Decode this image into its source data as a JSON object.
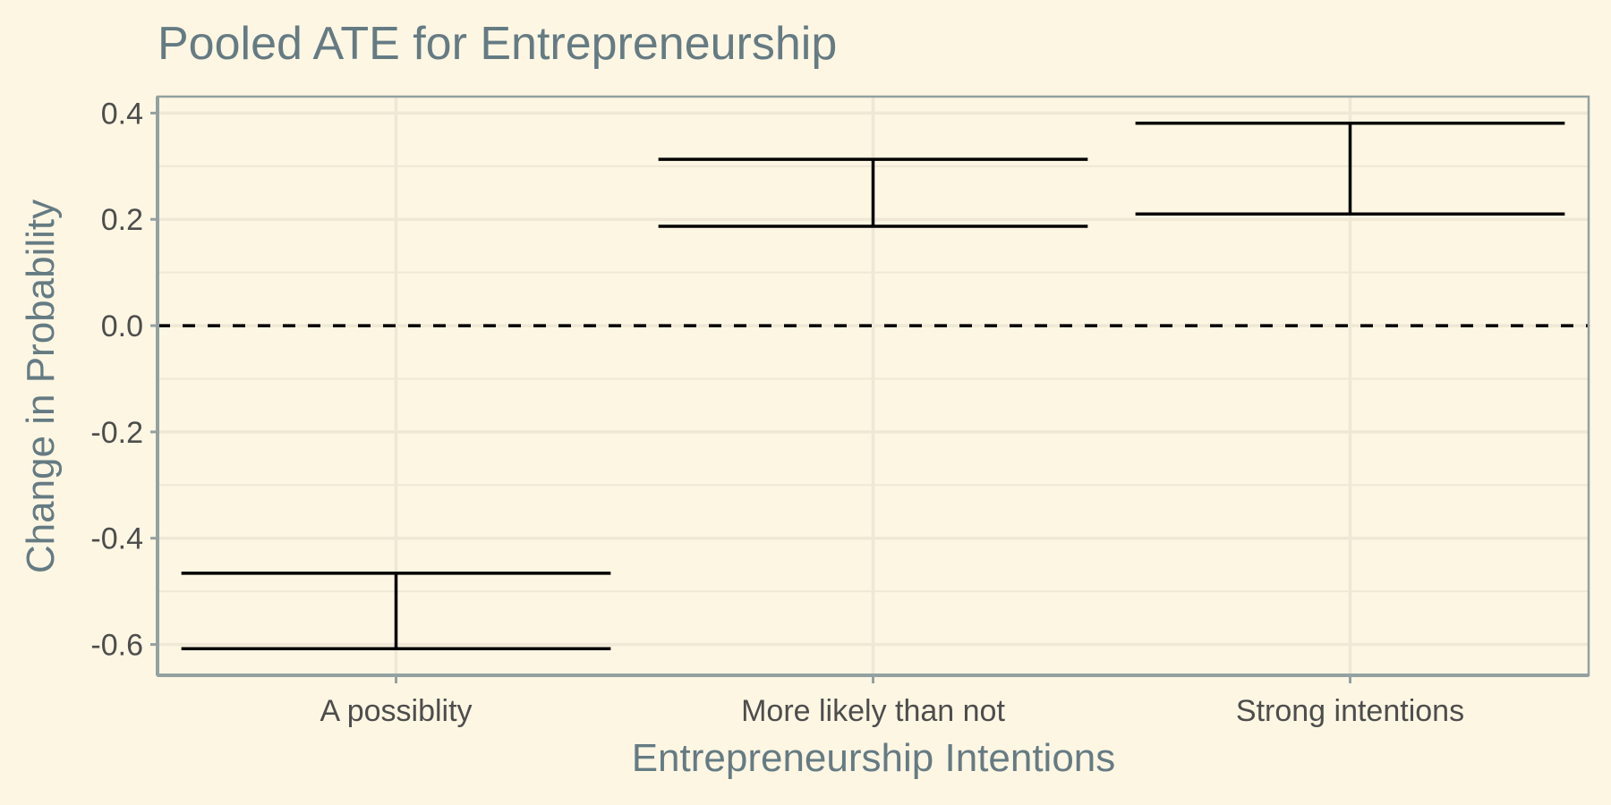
{
  "colors": {
    "background": "#FDF6E3",
    "panel_border": "#93A1A1",
    "grid": "#EEE8D5",
    "title": "#657B83",
    "tick_label": "#4D4D4D",
    "errorbar": "#000000",
    "reference_line": "#000000"
  },
  "chart_data": {
    "type": "errorbar",
    "title": "Pooled ATE for Entrepreneurship",
    "xlabel": "Entrepreneurship Intentions",
    "ylabel": "Change in Probability",
    "categories": [
      "A possiblity",
      "More likely than not",
      "Strong intentions"
    ],
    "intervals": [
      {
        "category": "A possiblity",
        "lower": -0.608,
        "upper": -0.466
      },
      {
        "category": "More likely than not",
        "lower": 0.187,
        "upper": 0.313
      },
      {
        "category": "Strong intentions",
        "lower": 0.21,
        "upper": 0.381
      }
    ],
    "yticks": [
      0.4,
      0.2,
      0.0,
      -0.2,
      -0.4,
      -0.6
    ],
    "ytick_labels": [
      "0.4",
      "0.2",
      "0.0",
      "-0.2",
      "-0.4",
      "-0.6"
    ],
    "ylim": [
      -0.658,
      0.431
    ],
    "reference_line": {
      "y": 0,
      "style": "dashed"
    },
    "grid": true,
    "legend": "none"
  }
}
